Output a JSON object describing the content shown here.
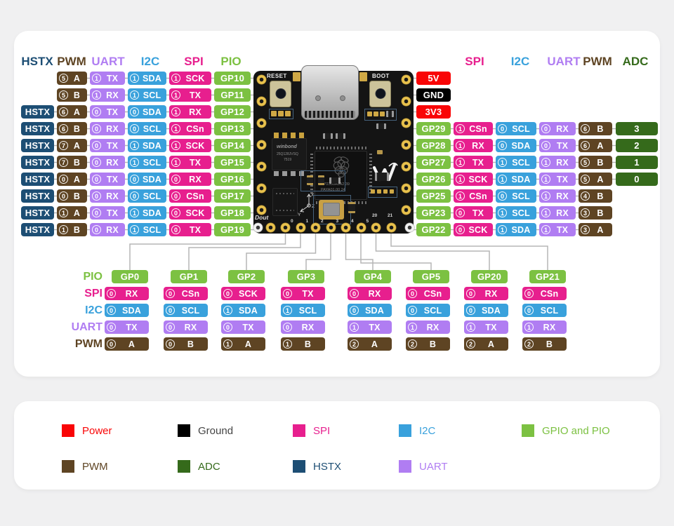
{
  "colors": {
    "power": "#f90506",
    "ground": "#000000",
    "spi": "#e71f8e",
    "i2c": "#39a1dc",
    "uart": "#b07df2",
    "pwm": "#5e4423",
    "gpio": "#7cc142",
    "adc": "#356a1b",
    "hstx": "#1d4e74",
    "line": "#b5b5b5",
    "ground_text": "#444444"
  },
  "headers": {
    "left": [
      {
        "label": "HSTX",
        "key": "hstx"
      },
      {
        "label": "PWM",
        "key": "pwm"
      },
      {
        "label": "UART",
        "key": "uart"
      },
      {
        "label": "I2C",
        "key": "i2c"
      },
      {
        "label": "SPI",
        "key": "spi"
      },
      {
        "label": "PIO",
        "key": "gpio"
      }
    ],
    "right": [
      {
        "label": "SPI",
        "key": "spi"
      },
      {
        "label": "I2C",
        "key": "i2c"
      },
      {
        "label": "UART",
        "key": "uart"
      },
      {
        "label": "PWM",
        "key": "pwm"
      },
      {
        "label": "ADC",
        "key": "adc"
      }
    ]
  },
  "pins_left": [
    {
      "gp": "GP10",
      "hstx": false,
      "pwm": {
        "n": "5",
        "s": "A"
      },
      "uart": {
        "n": "1",
        "s": "TX"
      },
      "i2c": {
        "n": "1",
        "s": "SDA"
      },
      "spi": {
        "n": "1",
        "s": "SCK"
      }
    },
    {
      "gp": "GP11",
      "hstx": false,
      "pwm": {
        "n": "5",
        "s": "B"
      },
      "uart": {
        "n": "1",
        "s": "RX"
      },
      "i2c": {
        "n": "1",
        "s": "SCL"
      },
      "spi": {
        "n": "1",
        "s": "TX"
      }
    },
    {
      "gp": "GP12",
      "hstx": true,
      "pwm": {
        "n": "6",
        "s": "A"
      },
      "uart": {
        "n": "0",
        "s": "TX"
      },
      "i2c": {
        "n": "0",
        "s": "SDA"
      },
      "spi": {
        "n": "1",
        "s": "RX"
      }
    },
    {
      "gp": "GP13",
      "hstx": true,
      "pwm": {
        "n": "6",
        "s": "B"
      },
      "uart": {
        "n": "0",
        "s": "RX"
      },
      "i2c": {
        "n": "0",
        "s": "SCL"
      },
      "spi": {
        "n": "1",
        "s": "CSn"
      }
    },
    {
      "gp": "GP14",
      "hstx": true,
      "pwm": {
        "n": "7",
        "s": "A"
      },
      "uart": {
        "n": "0",
        "s": "TX"
      },
      "i2c": {
        "n": "1",
        "s": "SDA"
      },
      "spi": {
        "n": "1",
        "s": "SCK"
      }
    },
    {
      "gp": "GP15",
      "hstx": true,
      "pwm": {
        "n": "7",
        "s": "B"
      },
      "uart": {
        "n": "0",
        "s": "RX"
      },
      "i2c": {
        "n": "1",
        "s": "SCL"
      },
      "spi": {
        "n": "1",
        "s": "TX"
      }
    },
    {
      "gp": "GP16",
      "hstx": true,
      "pwm": {
        "n": "0",
        "s": "A"
      },
      "uart": {
        "n": "0",
        "s": "TX"
      },
      "i2c": {
        "n": "0",
        "s": "SDA"
      },
      "spi": {
        "n": "0",
        "s": "RX"
      }
    },
    {
      "gp": "GP17",
      "hstx": true,
      "pwm": {
        "n": "0",
        "s": "B"
      },
      "uart": {
        "n": "0",
        "s": "RX"
      },
      "i2c": {
        "n": "0",
        "s": "SCL"
      },
      "spi": {
        "n": "0",
        "s": "CSn"
      }
    },
    {
      "gp": "GP18",
      "hstx": true,
      "pwm": {
        "n": "1",
        "s": "A"
      },
      "uart": {
        "n": "0",
        "s": "TX"
      },
      "i2c": {
        "n": "1",
        "s": "SDA"
      },
      "spi": {
        "n": "0",
        "s": "SCK"
      }
    },
    {
      "gp": "GP19",
      "hstx": true,
      "pwm": {
        "n": "1",
        "s": "B"
      },
      "uart": {
        "n": "0",
        "s": "RX"
      },
      "i2c": {
        "n": "1",
        "s": "SCL"
      },
      "spi": {
        "n": "0",
        "s": "TX"
      }
    }
  ],
  "right_power": [
    {
      "label": "5V",
      "key": "power"
    },
    {
      "label": "GND",
      "key": "ground"
    },
    {
      "label": "3V3",
      "key": "power"
    }
  ],
  "pins_right": [
    {
      "gp": "GP29",
      "spi": {
        "n": "1",
        "s": "CSn"
      },
      "i2c": {
        "n": "0",
        "s": "SCL"
      },
      "uart": {
        "n": "0",
        "s": "RX"
      },
      "pwm": {
        "n": "6",
        "s": "B"
      },
      "adc": "3"
    },
    {
      "gp": "GP28",
      "spi": {
        "n": "1",
        "s": "RX"
      },
      "i2c": {
        "n": "0",
        "s": "SDA"
      },
      "uart": {
        "n": "0",
        "s": "TX"
      },
      "pwm": {
        "n": "6",
        "s": "A"
      },
      "adc": "2"
    },
    {
      "gp": "GP27",
      "spi": {
        "n": "1",
        "s": "TX"
      },
      "i2c": {
        "n": "1",
        "s": "SCL"
      },
      "uart": {
        "n": "1",
        "s": "RX"
      },
      "pwm": {
        "n": "5",
        "s": "B"
      },
      "adc": "1"
    },
    {
      "gp": "GP26",
      "spi": {
        "n": "1",
        "s": "SCK"
      },
      "i2c": {
        "n": "1",
        "s": "SDA"
      },
      "uart": {
        "n": "1",
        "s": "TX"
      },
      "pwm": {
        "n": "5",
        "s": "A"
      },
      "adc": "0"
    },
    {
      "gp": "GP25",
      "spi": {
        "n": "1",
        "s": "CSn"
      },
      "i2c": {
        "n": "0",
        "s": "SCL"
      },
      "uart": {
        "n": "1",
        "s": "RX"
      },
      "pwm": {
        "n": "4",
        "s": "B"
      },
      "adc": null
    },
    {
      "gp": "GP23",
      "spi": {
        "n": "0",
        "s": "TX"
      },
      "i2c": {
        "n": "1",
        "s": "SCL"
      },
      "uart": {
        "n": "1",
        "s": "RX"
      },
      "pwm": {
        "n": "3",
        "s": "B"
      },
      "adc": null
    },
    {
      "gp": "GP22",
      "spi": {
        "n": "0",
        "s": "SCK"
      },
      "i2c": {
        "n": "1",
        "s": "SDA"
      },
      "uart": {
        "n": "1",
        "s": "TX"
      },
      "pwm": {
        "n": "3",
        "s": "A"
      },
      "adc": null
    }
  ],
  "bottom": {
    "row_labels": [
      {
        "label": "PIO",
        "key": "gpio"
      },
      {
        "label": "SPI",
        "key": "spi"
      },
      {
        "label": "I2C",
        "key": "i2c"
      },
      {
        "label": "UART",
        "key": "uart"
      },
      {
        "label": "PWM",
        "key": "pwm"
      }
    ],
    "columns": [
      {
        "gp": "GP0",
        "spi": {
          "n": "0",
          "s": "RX"
        },
        "i2c": {
          "n": "0",
          "s": "SDA"
        },
        "uart": {
          "n": "0",
          "s": "TX"
        },
        "pwm": {
          "n": "0",
          "s": "A"
        }
      },
      {
        "gp": "GP1",
        "spi": {
          "n": "0",
          "s": "CSn"
        },
        "i2c": {
          "n": "0",
          "s": "SCL"
        },
        "uart": {
          "n": "0",
          "s": "RX"
        },
        "pwm": {
          "n": "0",
          "s": "B"
        }
      },
      {
        "gp": "GP2",
        "spi": {
          "n": "0",
          "s": "SCK"
        },
        "i2c": {
          "n": "1",
          "s": "SDA"
        },
        "uart": {
          "n": "0",
          "s": "TX"
        },
        "pwm": {
          "n": "1",
          "s": "A"
        }
      },
      {
        "gp": "GP3",
        "spi": {
          "n": "0",
          "s": "TX"
        },
        "i2c": {
          "n": "1",
          "s": "SCL"
        },
        "uart": {
          "n": "0",
          "s": "RX"
        },
        "pwm": {
          "n": "1",
          "s": "B"
        }
      },
      {
        "gp": "GP4",
        "spi": {
          "n": "0",
          "s": "RX"
        },
        "i2c": {
          "n": "0",
          "s": "SDA"
        },
        "uart": {
          "n": "1",
          "s": "TX"
        },
        "pwm": {
          "n": "2",
          "s": "A"
        }
      },
      {
        "gp": "GP5",
        "spi": {
          "n": "0",
          "s": "CSn"
        },
        "i2c": {
          "n": "0",
          "s": "SCL"
        },
        "uart": {
          "n": "1",
          "s": "RX"
        },
        "pwm": {
          "n": "2",
          "s": "B"
        }
      },
      {
        "gp": "GP20",
        "spi": {
          "n": "0",
          "s": "RX"
        },
        "i2c": {
          "n": "0",
          "s": "SDA"
        },
        "uart": {
          "n": "1",
          "s": "TX"
        },
        "pwm": {
          "n": "2",
          "s": "A"
        }
      },
      {
        "gp": "GP21",
        "spi": {
          "n": "0",
          "s": "CSn"
        },
        "i2c": {
          "n": "0",
          "s": "SCL"
        },
        "uart": {
          "n": "1",
          "s": "RX"
        },
        "pwm": {
          "n": "2",
          "s": "B"
        }
      }
    ]
  },
  "board": {
    "reset_label": "RESET",
    "boot_label": "BOOT",
    "dout_label": "Dout",
    "pad_numbers": [
      "0",
      "1",
      "2",
      "3",
      "4",
      "5",
      "20",
      "21"
    ],
    "flash_line1": "winbond",
    "flash_line2": "25Q128JVSQ",
    "flash_line3": "7519",
    "mcu_line1": "RP2350A0A2 39",
    "mcu_line2": "PAYA01.00 24"
  },
  "legend": {
    "row1": [
      {
        "label": "Power",
        "key": "power"
      },
      {
        "label": "Ground",
        "key": "ground"
      },
      {
        "label": "SPI",
        "key": "spi"
      },
      {
        "label": "I2C",
        "key": "i2c"
      },
      {
        "label": "GPIO and PIO",
        "key": "gpio"
      }
    ],
    "row2": [
      {
        "label": "PWM",
        "key": "pwm"
      },
      {
        "label": "ADC",
        "key": "adc"
      },
      {
        "label": "HSTX",
        "key": "hstx"
      },
      {
        "label": "UART",
        "key": "uart"
      }
    ]
  }
}
